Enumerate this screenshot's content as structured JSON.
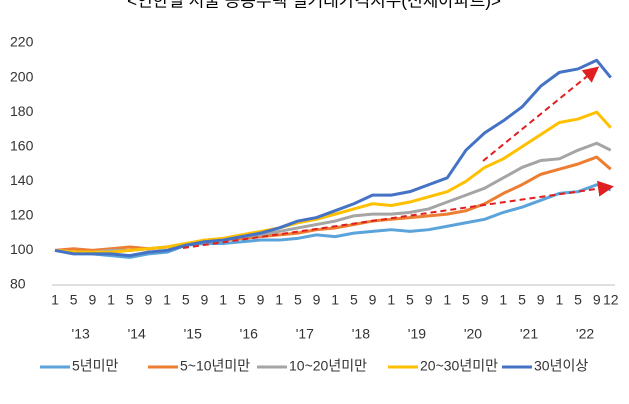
{
  "chart_data": {
    "type": "line",
    "title": "<연한별 서울 공동주택 실거래가격지수(전체아파트)>",
    "categories": [
      "1",
      "5",
      "9",
      "1",
      "5",
      "9",
      "1",
      "5",
      "9",
      "1",
      "5",
      "9",
      "1",
      "5",
      "9",
      "1",
      "5",
      "9",
      "1",
      "5",
      "9",
      "1",
      "5",
      "9",
      "1",
      "5",
      "9",
      "1",
      "5",
      "9",
      "12"
    ],
    "year_labels": [
      "'13",
      "'14",
      "'15",
      "'16",
      "'17",
      "'18",
      "'19",
      "'20",
      "'21",
      "'22"
    ],
    "series": [
      {
        "name": "5년미만",
        "color": "#5BA3DB",
        "values": [
          100,
          99,
          98,
          97,
          96,
          98,
          99,
          103,
          104,
          104,
          105,
          106,
          106,
          107,
          109,
          108,
          110,
          111,
          112,
          111,
          112,
          114,
          116,
          118,
          122,
          125,
          129,
          133,
          134,
          138,
          135
        ]
      },
      {
        "name": "5~10년미만",
        "color": "#ED7D31",
        "values": [
          100,
          101,
          100,
          101,
          102,
          101,
          102,
          103,
          105,
          106,
          107,
          108,
          109,
          110,
          112,
          113,
          115,
          117,
          118,
          119,
          120,
          121,
          123,
          127,
          133,
          138,
          144,
          147,
          150,
          154,
          147
        ]
      },
      {
        "name": "10~20년미만",
        "color": "#A5A5A5",
        "values": [
          100,
          99,
          99,
          100,
          100,
          101,
          102,
          104,
          105,
          106,
          108,
          109,
          111,
          113,
          115,
          117,
          120,
          121,
          121,
          122,
          124,
          128,
          132,
          136,
          142,
          148,
          152,
          153,
          158,
          162,
          158
        ]
      },
      {
        "name": "20~30년미만",
        "color": "#FFC000",
        "values": [
          100,
          99,
          99,
          99,
          100,
          101,
          102,
          104,
          106,
          107,
          109,
          111,
          113,
          116,
          118,
          121,
          124,
          127,
          126,
          128,
          131,
          134,
          140,
          148,
          153,
          160,
          167,
          174,
          176,
          180,
          171
        ]
      },
      {
        "name": "30년이상",
        "color": "#4472C4",
        "values": [
          100,
          98,
          98,
          98,
          97,
          99,
          100,
          103,
          105,
          106,
          108,
          110,
          113,
          117,
          119,
          123,
          127,
          132,
          132,
          134,
          138,
          142,
          158,
          168,
          175,
          183,
          195,
          203,
          205,
          210,
          200
        ]
      }
    ],
    "ylim": [
      80,
      220
    ],
    "yticks": [
      80,
      100,
      120,
      140,
      160,
      180,
      200,
      220
    ],
    "grid": false
  }
}
